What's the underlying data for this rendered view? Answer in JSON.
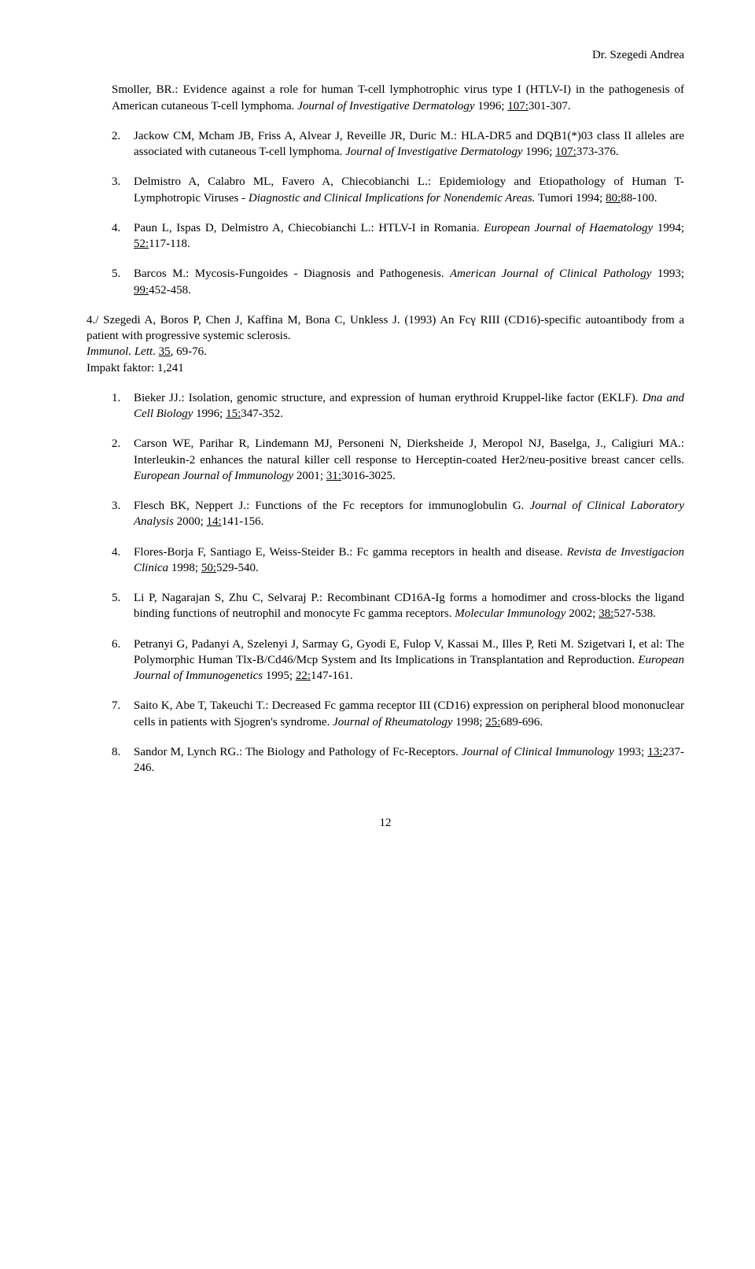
{
  "header": {
    "author": "Dr. Szegedi Andrea"
  },
  "g1": {
    "lead": "Smoller, BR.: Evidence against a role for human T-cell lymphotrophic virus type I (HTLV-I) in the pathogenesis of American cutaneous T-cell lymphoma.",
    "journal": "Journal of Investigative Dermatology",
    "tail": " 1996; ",
    "vol": "107:",
    "pages": "301-307.",
    "items": [
      {
        "n": "2.",
        "t1": "Jackow CM, Mcham JB, Friss A, Alvear J, Reveille JR, Duric M.: HLA-DR5 and DQB1(*)03 class II alleles are associated with cutaneous T-cell lymphoma. ",
        "j": "Journal of Investigative Dermatology",
        "t2": " 1996; ",
        "v": "107:",
        "p": "373-376."
      },
      {
        "n": "3.",
        "t1": "Delmistro A, Calabro ML, Favero A, Chiecobianchi L.: Epidemiology and Etiopathology of Human T-Lymphotropic Viruses - ",
        "jitalic": "Diagnostic and Clinical Implications for Nonendemic Areas.",
        "t2": " Tumori 1994; ",
        "v": "80:",
        "p": "88-100."
      },
      {
        "n": "4.",
        "t1": "Paun L, Ispas D, Delmistro A, Chiecobianchi L.: HTLV-I in Romania. ",
        "j": "European Journal of Haematology",
        "t2": " 1994; ",
        "v": "52:",
        "p": "117-118."
      },
      {
        "n": "5.",
        "t1": "Barcos M.: Mycosis-Fungoides - Diagnosis and Pathogenesis. ",
        "j": "American Journal of Clinical Pathology",
        "t2": " 1993; ",
        "v": "99:",
        "p": "452-458."
      }
    ]
  },
  "g2": {
    "head1": "4./ Szegedi A, Boros P, Chen J, Kaffina M, Bona C, Unkless J. (1993) An Fcγ RIII (CD16)-specific autoantibody from a patient with progressive systemic sclerosis.",
    "line2a": "Immunol. Lett",
    "line2b": ". ",
    "line2v": "35",
    "line2c": ", 69-76.",
    "impakt": "Impakt faktor: 1,241",
    "items": [
      {
        "n": "1.",
        "t1": "Bieker JJ.: Isolation, genomic structure, and expression of human erythroid Kruppel-like factor (EKLF). ",
        "j": "Dna and Cell Biology",
        "t2": " 1996; ",
        "v": "15:",
        "p": "347-352."
      },
      {
        "n": "2.",
        "t1": "Carson WE, Parihar R, Lindemann MJ, Personeni N, Dierksheide J, Meropol NJ, Baselga, J., Caligiuri MA.: Interleukin-2 enhances the natural killer cell response to Herceptin-coated Her2/neu-positive breast cancer cells. ",
        "j": "European Journal of Immunology",
        "t2": " 2001; ",
        "v": "31:",
        "p": "3016-3025."
      },
      {
        "n": "3.",
        "t1": "Flesch BK,  Neppert J.: Functions of the Fc receptors for immunoglobulin G. ",
        "j": "Journal of Clinical Laboratory Analysis ",
        "t2": " 2000; ",
        "v": "14:",
        "p": "141-156."
      },
      {
        "n": "4.",
        "t1": "Flores-Borja F, Santiago E, Weiss-Steider B.:  Fc gamma receptors in health and disease. ",
        "j": "Revista de Investigacion Clinica",
        "t2": " 1998; ",
        "v": "50:",
        "p": "529-540."
      },
      {
        "n": "5.",
        "t1": "Li P, Nagarajan S, Zhu C, Selvaraj P.: Recombinant CD16A-Ig forms a homodimer and cross-blocks the ligand binding functions of neutrophil and monocyte Fc gamma receptors. ",
        "j": "Molecular Immunology",
        "t2": " 2002; ",
        "v": "38:",
        "p": "527-538."
      },
      {
        "n": "6.",
        "t1": "Petranyi G, Padanyi A, Szelenyi J, Sarmay G, Gyodi E, Fulop V, Kassai M., Illes P, Reti M. Szigetvari I, et al: The Polymorphic Human Tlx-B/Cd46/Mcp System and Its Implications in Transplantation and Reproduction. ",
        "j": "European Journal of Immunogenetics",
        "t2": " 1995; ",
        "v": "22:",
        "p": "147-161."
      },
      {
        "n": "7.",
        "t1": "Saito K, Abe T, Takeuchi T.: Decreased Fc gamma receptor III (CD16) expression on peripheral blood mononuclear cells in patients with Sjogren's syndrome. ",
        "j": "Journal of Rheumatology",
        "t2": " 1998; ",
        "v": "25:",
        "p": "689-696."
      },
      {
        "n": "8.",
        "t1": "Sandor M, Lynch RG.: The Biology and Pathology of Fc-Receptors. ",
        "j": "Journal of Clinical Immunology",
        "t2": " 1993; ",
        "v": "13:",
        "p": "237-246."
      }
    ]
  },
  "pageNumber": "12"
}
